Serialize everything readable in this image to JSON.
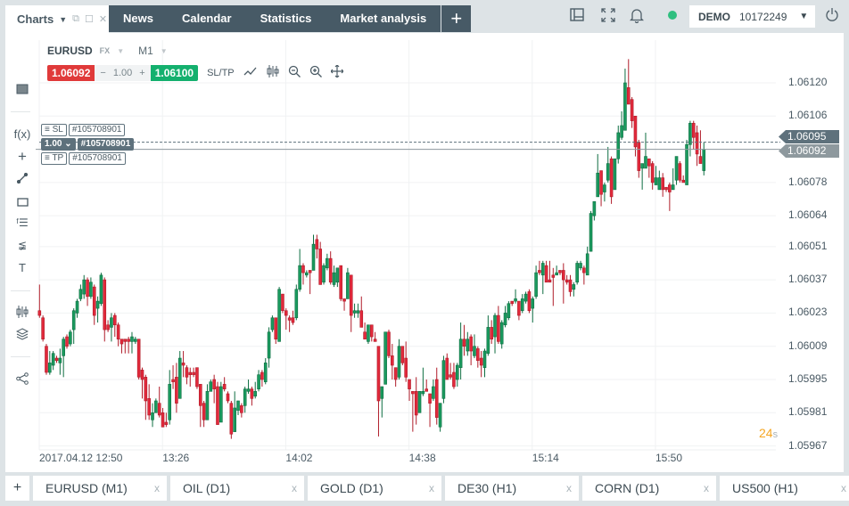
{
  "topbar": {
    "charts_tab": "Charts",
    "nav": [
      "News",
      "Calendar",
      "Statistics",
      "Market analysis"
    ],
    "add_label": "+",
    "account_type": "DEMO",
    "account_number": "10172249",
    "status_color": "#2ebf7f"
  },
  "chart_header": {
    "symbol": "EURUSD",
    "market": "FX",
    "timeframe": "M1",
    "bid": "1.06092",
    "volume": "1.00",
    "ask": "1.06100",
    "sltp": "SL/TP",
    "minus": "−",
    "plus": "+"
  },
  "orders": {
    "sl_label": "SL",
    "tp_label": "TP",
    "order_id": "#105708901",
    "position_volume": "1.00",
    "position_id": "#105708901"
  },
  "price_tags": {
    "pending": "1.06095",
    "current": "1.06092"
  },
  "countdown": {
    "value": "24",
    "unit": "s"
  },
  "bottom_tabs": {
    "add": "+",
    "tabs": [
      "EURUSD (M1)",
      "OIL (D1)",
      "GOLD (D1)",
      "DE30 (H1)",
      "CORN (D1)",
      "US500 (H1)"
    ],
    "close": "x"
  },
  "colors": {
    "up": "#1a9a5e",
    "down": "#e2293b",
    "accent_orange": "#f5a623"
  },
  "chart_data": {
    "type": "candlestick",
    "yticks": [
      "1.06120",
      "1.06106",
      "1.06092",
      "1.06078",
      "1.06064",
      "1.06051",
      "1.06037",
      "1.06023",
      "1.06009",
      "1.05995",
      "1.05981",
      "1.05967"
    ],
    "xticks": [
      "2017.04.12 12:50",
      "13:26",
      "14:02",
      "14:38",
      "15:14",
      "15:50"
    ],
    "ylim": [
      1.05967,
      1.0612
    ],
    "start": "2017.04.12 12:50",
    "interval": "1 minute",
    "ohlc": [
      [
        1.06024,
        1.06035,
        1.06021,
        1.06022
      ],
      [
        1.06021,
        1.06022,
        1.06011,
        1.06012
      ],
      [
        1.06009,
        1.0601,
        1.05997,
        1.05998
      ],
      [
        1.05998,
        1.06007,
        1.05997,
        1.06002
      ],
      [
        1.06001,
        1.06007,
        1.05999,
        1.06006
      ],
      [
        1.06004,
        1.06005,
        1.06002,
        1.06003
      ],
      [
        1.06002,
        1.06008,
        1.05997,
        1.06004
      ],
      [
        1.06005,
        1.06013,
        1.05996,
        1.06012
      ],
      [
        1.06013,
        1.06014,
        1.06008,
        1.06009
      ],
      [
        1.0601,
        1.06016,
        1.06009,
        1.06015
      ],
      [
        1.06016,
        1.06025,
        1.0601,
        1.06024
      ],
      [
        1.06023,
        1.06029,
        1.06021,
        1.06028
      ],
      [
        1.06029,
        1.06035,
        1.06028,
        1.06033
      ],
      [
        1.06031,
        1.06039,
        1.06029,
        1.06037
      ],
      [
        1.06037,
        1.06038,
        1.06026,
        1.0603
      ],
      [
        1.0603,
        1.06038,
        1.06029,
        1.06036
      ],
      [
        1.06034,
        1.06035,
        1.06018,
        1.06022
      ],
      [
        1.06025,
        1.0603,
        1.06019,
        1.06028
      ],
      [
        1.06027,
        1.0604,
        1.06026,
        1.06039
      ],
      [
        1.06037,
        1.06038,
        1.06011,
        1.06016
      ],
      [
        1.06018,
        1.0602,
        1.06015,
        1.06016
      ],
      [
        1.06017,
        1.06023,
        1.06011,
        1.06021
      ],
      [
        1.06022,
        1.06023,
        1.06013,
        1.06018
      ],
      [
        1.06018,
        1.06019,
        1.06009,
        1.06012
      ],
      [
        1.06012,
        1.06012,
        1.06006,
        1.0601
      ],
      [
        1.06012,
        1.06012,
        1.06006,
        1.06011
      ],
      [
        1.06012,
        1.06013,
        1.06006,
        1.06011
      ],
      [
        1.06011,
        1.06015,
        1.06006,
        1.06013
      ],
      [
        1.06011,
        1.06013,
        1.0601,
        1.06012
      ],
      [
        1.06012,
        1.06012,
        1.05995,
        1.05996
      ],
      [
        1.05999,
        1.06,
        1.05987,
        1.05995
      ],
      [
        1.05996,
        1.05997,
        1.05978,
        1.05986
      ],
      [
        1.05987,
        1.05993,
        1.05978,
        1.0598
      ],
      [
        1.05978,
        1.05985,
        1.05975,
        1.05981
      ],
      [
        1.05981,
        1.05987,
        1.05981,
        1.05986
      ],
      [
        1.05985,
        1.05992,
        1.05979,
        1.0598
      ],
      [
        1.05981,
        1.05983,
        1.05975,
        1.05975
      ],
      [
        1.05977,
        1.05981,
        1.05975,
        1.05976
      ],
      [
        1.05978,
        1.05999,
        1.05976,
        1.05993
      ],
      [
        1.05995,
        1.06001,
        1.05991,
        1.05994
      ],
      [
        1.05996,
        1.06002,
        1.05981,
        1.05985
      ],
      [
        1.05987,
        1.06007,
        1.05987,
        1.06004
      ],
      [
        1.06002,
        1.06007,
        1.05996,
        1.06001
      ],
      [
        1.06,
        1.06001,
        1.05993,
        1.05996
      ],
      [
        1.05998,
        1.06,
        1.05992,
        1.05997
      ],
      [
        1.05998,
        1.06,
        1.05996,
        1.05997
      ],
      [
        1.06,
        1.06,
        1.05991,
        1.05992
      ],
      [
        1.05993,
        1.05993,
        1.05975,
        1.05984
      ],
      [
        1.05985,
        1.05986,
        1.05975,
        1.05978
      ],
      [
        1.05978,
        1.05993,
        1.05978,
        1.0599
      ],
      [
        1.0599,
        1.05995,
        1.0599,
        1.05994
      ],
      [
        1.05995,
        1.05997,
        1.05985,
        1.05991
      ],
      [
        1.05992,
        1.05994,
        1.05976,
        1.05976
      ],
      [
        1.05977,
        1.05994,
        1.05977,
        1.05992
      ],
      [
        1.05993,
        1.05996,
        1.0599,
        1.05991
      ],
      [
        1.05989,
        1.0599,
        1.05985,
        1.05986
      ],
      [
        1.05985,
        1.05986,
        1.0597,
        1.05972
      ],
      [
        1.05973,
        1.0599,
        1.05973,
        1.05983
      ],
      [
        1.05982,
        1.05986,
        1.0598,
        1.05986
      ],
      [
        1.05984,
        1.05985,
        1.05979,
        1.05981
      ],
      [
        1.05984,
        1.05992,
        1.05981,
        1.05991
      ],
      [
        1.0599,
        1.05995,
        1.05989,
        1.05991
      ],
      [
        1.05991,
        1.05992,
        1.05984,
        1.05987
      ],
      [
        1.05988,
        1.05994,
        1.05987,
        1.0599
      ],
      [
        1.05991,
        1.05999,
        1.0599,
        1.05997
      ],
      [
        1.05998,
        1.05999,
        1.05992,
        1.05995
      ],
      [
        1.05994,
        1.06004,
        1.05993,
        1.06002
      ],
      [
        1.06004,
        1.06017,
        1.06,
        1.06015
      ],
      [
        1.06016,
        1.06022,
        1.06015,
        1.06021
      ],
      [
        1.06021,
        1.06021,
        1.0601,
        1.06012
      ],
      [
        1.06011,
        1.06034,
        1.06011,
        1.06033
      ],
      [
        1.06031,
        1.06031,
        1.06023,
        1.06024
      ],
      [
        1.06024,
        1.06025,
        1.06016,
        1.06022
      ],
      [
        1.06021,
        1.06022,
        1.06015,
        1.0602
      ],
      [
        1.06021,
        1.06024,
        1.06018,
        1.06019
      ],
      [
        1.06021,
        1.06035,
        1.0602,
        1.06033
      ],
      [
        1.06033,
        1.0605,
        1.06032,
        1.06043
      ],
      [
        1.06043,
        1.06044,
        1.06035,
        1.0604
      ],
      [
        1.06039,
        1.06041,
        1.06038,
        1.0604
      ],
      [
        1.06041,
        1.06041,
        1.06031,
        1.0604
      ],
      [
        1.06041,
        1.06056,
        1.06041,
        1.06052
      ],
      [
        1.06054,
        1.06056,
        1.06046,
        1.0605
      ],
      [
        1.0605,
        1.06053,
        1.06035,
        1.06035
      ],
      [
        1.06036,
        1.06044,
        1.06035,
        1.06043
      ],
      [
        1.06042,
        1.06048,
        1.06041,
        1.06046
      ],
      [
        1.06046,
        1.06049,
        1.06035,
        1.06036
      ],
      [
        1.06035,
        1.06043,
        1.06034,
        1.0604
      ],
      [
        1.06036,
        1.06042,
        1.06034,
        1.06042
      ],
      [
        1.06043,
        1.06043,
        1.06028,
        1.06029
      ],
      [
        1.06029,
        1.06029,
        1.06024,
        1.06028
      ],
      [
        1.06029,
        1.06042,
        1.06029,
        1.0604
      ],
      [
        1.06039,
        1.06039,
        1.06015,
        1.06022
      ],
      [
        1.06023,
        1.06027,
        1.06021,
        1.06024
      ],
      [
        1.06023,
        1.06027,
        1.06021,
        1.06024
      ],
      [
        1.06024,
        1.0603,
        1.06017,
        1.06017
      ],
      [
        1.06015,
        1.06019,
        1.06012,
        1.06012
      ],
      [
        1.06011,
        1.06018,
        1.0601,
        1.06018
      ],
      [
        1.06018,
        1.06018,
        1.06011,
        1.06013
      ],
      [
        1.06012,
        1.06015,
        1.06011,
        1.06011
      ],
      [
        1.06009,
        1.06009,
        1.05971,
        1.05986
      ],
      [
        1.05987,
        1.05992,
        1.05979,
        1.05992
      ],
      [
        1.05993,
        1.06015,
        1.05993,
        1.06015
      ],
      [
        1.06015,
        1.06016,
        1.06004,
        1.06005
      ],
      [
        1.06005,
        1.0601,
        1.05995,
        1.06001
      ],
      [
        1.06,
        1.06,
        1.05992,
        1.05995
      ],
      [
        1.05996,
        1.06012,
        1.05995,
        1.06009
      ],
      [
        1.06009,
        1.06009,
        1.06001,
        1.06002
      ],
      [
        1.06004,
        1.06011,
        1.05994,
        1.05996
      ],
      [
        1.05995,
        1.05995,
        1.05986,
        1.05991
      ],
      [
        1.0599,
        1.0599,
        1.05973,
        1.05989
      ],
      [
        1.0599,
        1.05996,
        1.05976,
        1.0598
      ],
      [
        1.05981,
        1.0599,
        1.05981,
        1.0599
      ],
      [
        1.05989,
        1.06,
        1.05988,
        1.0599
      ],
      [
        1.05991,
        1.05995,
        1.0599,
        1.0599
      ],
      [
        1.05989,
        1.05989,
        1.05975,
        1.05985
      ],
      [
        1.05987,
        1.05995,
        1.05986,
        1.05992
      ],
      [
        1.05995,
        1.06,
        1.05976,
        1.05979
      ],
      [
        1.05975,
        1.05985,
        1.05973,
        1.05985
      ],
      [
        1.05987,
        1.06005,
        1.05985,
        1.06003
      ],
      [
        1.06004,
        1.06006,
        1.05995,
        1.05995
      ],
      [
        1.05997,
        1.06002,
        1.05995,
        1.05996
      ],
      [
        1.05998,
        1.06002,
        1.05991,
        1.05992
      ],
      [
        1.05995,
        1.06002,
        1.05992,
        1.06001
      ],
      [
        1.06,
        1.06019,
        1.05995,
        1.06012
      ],
      [
        1.06012,
        1.06018,
        1.06005,
        1.06009
      ],
      [
        1.06007,
        1.06015,
        1.06005,
        1.06012
      ],
      [
        1.06013,
        1.06014,
        1.06001,
        1.06007
      ],
      [
        1.06005,
        1.06014,
        1.06004,
        1.06009
      ],
      [
        1.06008,
        1.06009,
        1.06,
        1.06003
      ],
      [
        1.06004,
        1.06007,
        1.05996,
        1.06001
      ],
      [
        1.06,
        1.06008,
        1.05996,
        1.06007
      ],
      [
        1.06006,
        1.06022,
        1.06005,
        1.06017
      ],
      [
        1.06017,
        1.0602,
        1.0601,
        1.06012
      ],
      [
        1.06013,
        1.06023,
        1.06006,
        1.06022
      ],
      [
        1.06022,
        1.06026,
        1.0601,
        1.06011
      ],
      [
        1.0601,
        1.0602,
        1.06008,
        1.06019
      ],
      [
        1.06018,
        1.06026,
        1.06017,
        1.06023
      ],
      [
        1.06021,
        1.06028,
        1.0602,
        1.06027
      ],
      [
        1.06028,
        1.06028,
        1.06026,
        1.06027
      ],
      [
        1.06028,
        1.06033,
        1.06027,
        1.06029
      ],
      [
        1.06028,
        1.06028,
        1.0602,
        1.06022
      ],
      [
        1.06024,
        1.06031,
        1.06023,
        1.06029
      ],
      [
        1.06028,
        1.06032,
        1.06027,
        1.06031
      ],
      [
        1.06032,
        1.06033,
        1.06023,
        1.06024
      ],
      [
        1.06025,
        1.0603,
        1.06019,
        1.06029
      ],
      [
        1.0603,
        1.06043,
        1.06029,
        1.0604
      ],
      [
        1.06041,
        1.06045,
        1.06039,
        1.0604
      ],
      [
        1.06039,
        1.06045,
        1.06031,
        1.06044
      ],
      [
        1.06043,
        1.06045,
        1.06036,
        1.06036
      ],
      [
        1.06037,
        1.06045,
        1.06036,
        1.06036
      ],
      [
        1.06039,
        1.06042,
        1.06026,
        1.06038
      ],
      [
        1.06039,
        1.06043,
        1.06039,
        1.0604
      ],
      [
        1.06041,
        1.06041,
        1.06039,
        1.0604
      ],
      [
        1.06041,
        1.06044,
        1.06027,
        1.06037
      ],
      [
        1.06037,
        1.06039,
        1.06035,
        1.06036
      ],
      [
        1.06037,
        1.06039,
        1.0603,
        1.06032
      ],
      [
        1.06033,
        1.06036,
        1.0603,
        1.06035
      ],
      [
        1.06036,
        1.06045,
        1.06035,
        1.06044
      ],
      [
        1.06042,
        1.06045,
        1.06041,
        1.06044
      ],
      [
        1.06042,
        1.06043,
        1.06035,
        1.0604
      ],
      [
        1.06039,
        1.06051,
        1.06039,
        1.06048
      ],
      [
        1.06049,
        1.06066,
        1.06049,
        1.06065
      ],
      [
        1.06064,
        1.0607,
        1.06062,
        1.0607
      ],
      [
        1.06072,
        1.0609,
        1.06072,
        1.06082
      ],
      [
        1.06083,
        1.06083,
        1.06068,
        1.06073
      ],
      [
        1.06074,
        1.06078,
        1.0607,
        1.06077
      ],
      [
        1.06079,
        1.06093,
        1.06078,
        1.06086
      ],
      [
        1.06088,
        1.06089,
        1.06069,
        1.06072
      ],
      [
        1.06075,
        1.06088,
        1.06075,
        1.06088
      ],
      [
        1.06088,
        1.06102,
        1.06086,
        1.06099
      ],
      [
        1.06097,
        1.06108,
        1.06096,
        1.06102
      ],
      [
        1.061,
        1.06126,
        1.061,
        1.0612
      ],
      [
        1.06118,
        1.0613,
        1.06111,
        1.06111
      ],
      [
        1.06113,
        1.06114,
        1.06101,
        1.06104
      ],
      [
        1.06106,
        1.06106,
        1.06089,
        1.06093
      ],
      [
        1.06095,
        1.06096,
        1.0608,
        1.06083
      ],
      [
        1.06084,
        1.06086,
        1.06075,
        1.06086
      ],
      [
        1.06084,
        1.06099,
        1.06084,
        1.06089
      ],
      [
        1.06088,
        1.06088,
        1.0608,
        1.06085
      ],
      [
        1.06086,
        1.06087,
        1.06075,
        1.06078
      ],
      [
        1.06077,
        1.06085,
        1.06077,
        1.0608
      ],
      [
        1.06075,
        1.06083,
        1.06075,
        1.0608
      ],
      [
        1.0608,
        1.06082,
        1.06072,
        1.06075
      ],
      [
        1.06076,
        1.06076,
        1.06074,
        1.06075
      ],
      [
        1.06077,
        1.06078,
        1.06066,
        1.06074
      ],
      [
        1.06075,
        1.06084,
        1.06075,
        1.06077
      ],
      [
        1.06079,
        1.06089,
        1.06077,
        1.06089
      ],
      [
        1.06086,
        1.06087,
        1.06078,
        1.06079
      ],
      [
        1.06079,
        1.06081,
        1.06078,
        1.06078
      ],
      [
        1.06077,
        1.06096,
        1.06077,
        1.06094
      ],
      [
        1.06094,
        1.06104,
        1.06089,
        1.06103
      ],
      [
        1.06103,
        1.06104,
        1.06092,
        1.06097
      ],
      [
        1.06099,
        1.06102,
        1.06085,
        1.0609
      ],
      [
        1.06089,
        1.061,
        1.06086,
        1.06086
      ],
      [
        1.06083,
        1.06095,
        1.06081,
        1.06092
      ]
    ]
  }
}
